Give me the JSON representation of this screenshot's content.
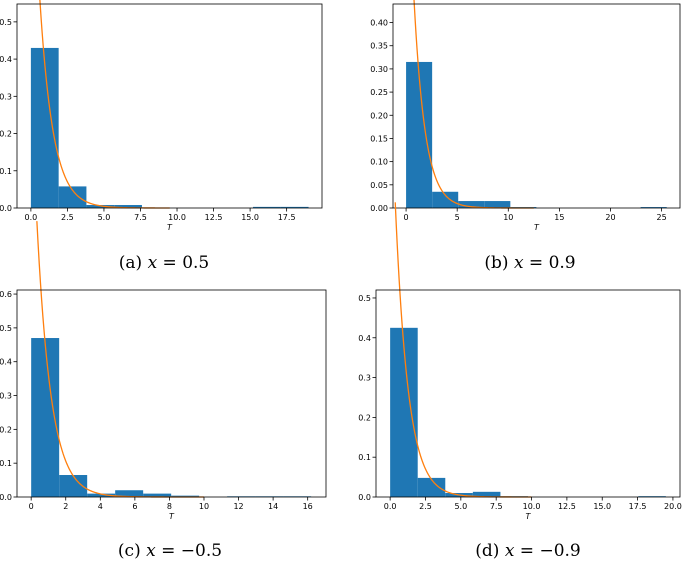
{
  "colors": {
    "bar": "#1f77b4",
    "curve": "#ff7f0e",
    "axis": "#000000"
  },
  "chart_data": [
    {
      "type": "bar",
      "caption_prefix": "(a) ",
      "caption_var": "x",
      "caption_rest": " = 0.5",
      "xlabel": "T",
      "ylabel": "",
      "xlim": [
        -0.95,
        19.92
      ],
      "ylim": [
        0,
        0.548
      ],
      "xticks": [
        0.0,
        2.5,
        5.0,
        7.5,
        10.0,
        12.5,
        15.0,
        17.5
      ],
      "xtick_labels": [
        "0.0",
        "2.5",
        "5.0",
        "7.5",
        "10.0",
        "12.5",
        "15.0",
        "17.5"
      ],
      "yticks": [
        0.0,
        0.1,
        0.2,
        0.3,
        0.4,
        0.5
      ],
      "ytick_labels": [
        "0.0",
        "0.1",
        "0.2",
        "0.3",
        "0.4",
        "0.5"
      ],
      "bin_edges": [
        0.0,
        1.9,
        3.8,
        5.7,
        7.6,
        9.5,
        11.4,
        13.3,
        15.2,
        17.1,
        19.0
      ],
      "values": [
        0.43,
        0.058,
        0.008,
        0.008,
        0.0,
        0.0,
        0.0,
        0.0,
        0.003,
        0.003
      ],
      "curve": {
        "rate": 1.1,
        "x_start": 0.38,
        "x_end": 9.5
      }
    },
    {
      "type": "bar",
      "caption_prefix": "(b) ",
      "caption_var": "x",
      "caption_rest": " = 0.9",
      "xlabel": "T",
      "ylabel": "",
      "xlim": [
        -1.28,
        26.8
      ],
      "ylim": [
        0,
        0.44
      ],
      "xticks": [
        0,
        5,
        10,
        15,
        20,
        25
      ],
      "xtick_labels": [
        "0",
        "5",
        "10",
        "15",
        "20",
        "25"
      ],
      "yticks": [
        0.0,
        0.05,
        0.1,
        0.15,
        0.2,
        0.25,
        0.3,
        0.35,
        0.4
      ],
      "ytick_labels": [
        "0.00",
        "0.05",
        "0.10",
        "0.15",
        "0.20",
        "0.25",
        "0.30",
        "0.35",
        "0.40"
      ],
      "bin_edges": [
        0.0,
        2.55,
        5.1,
        7.65,
        10.2,
        12.75,
        15.3,
        17.85,
        20.4,
        22.95,
        25.5
      ],
      "values": [
        0.315,
        0.035,
        0.015,
        0.015,
        0.002,
        0.0,
        0.0,
        0.0,
        0.0,
        0.002
      ],
      "curve": {
        "rate": 0.91,
        "x_start": 0.28,
        "x_end": 12.5
      }
    },
    {
      "type": "bar",
      "caption_prefix": "(c) ",
      "caption_var": "x",
      "caption_rest": " = −0.5",
      "xlabel": "T",
      "ylabel": "",
      "xlim": [
        -0.82,
        17.06
      ],
      "ylim": [
        0,
        0.612
      ],
      "xticks": [
        0,
        2,
        4,
        6,
        8,
        10,
        12,
        14,
        16
      ],
      "xtick_labels": [
        "0",
        "2",
        "4",
        "6",
        "8",
        "10",
        "12",
        "14",
        "16"
      ],
      "yticks": [
        0.0,
        0.1,
        0.2,
        0.3,
        0.4,
        0.5,
        0.6
      ],
      "ytick_labels": [
        "0.0",
        "0.1",
        "0.2",
        "0.3",
        "0.4",
        "0.5",
        "0.6"
      ],
      "bin_edges": [
        0.0,
        1.62,
        3.24,
        4.86,
        6.48,
        8.1,
        9.72,
        11.34,
        12.96,
        14.58,
        16.2
      ],
      "values": [
        0.47,
        0.065,
        0.01,
        0.02,
        0.01,
        0.004,
        0.0,
        0.002,
        0.002,
        0.002
      ],
      "curve": {
        "rate": 1.22,
        "x_start": 0.33,
        "x_end": 10.0
      }
    },
    {
      "type": "bar",
      "caption_prefix": "(d) ",
      "caption_var": "x",
      "caption_rest": " = −0.9",
      "xlabel": "T",
      "ylabel": "",
      "xlim": [
        -1.0,
        20.5
      ],
      "ylim": [
        0,
        0.52
      ],
      "xticks": [
        0.0,
        2.5,
        5.0,
        7.5,
        10.0,
        12.5,
        15.0,
        17.5,
        20.0
      ],
      "xtick_labels": [
        "0.0",
        "2.5",
        "5.0",
        "7.5",
        "10.0",
        "12.5",
        "15.0",
        "17.5",
        "20.0"
      ],
      "yticks": [
        0.0,
        0.1,
        0.2,
        0.3,
        0.4,
        0.5
      ],
      "ytick_labels": [
        "0.0",
        "0.1",
        "0.2",
        "0.3",
        "0.4",
        "0.5"
      ],
      "bin_edges": [
        0.0,
        1.95,
        3.9,
        5.85,
        7.8,
        9.75,
        11.7,
        13.65,
        15.6,
        17.55,
        19.5
      ],
      "values": [
        0.425,
        0.048,
        0.01,
        0.013,
        0.002,
        0.0,
        0.0,
        0.0,
        0.0,
        0.002
      ],
      "curve": {
        "rate": 1.1,
        "x_start": 0.36,
        "x_end": 10.0
      }
    }
  ]
}
